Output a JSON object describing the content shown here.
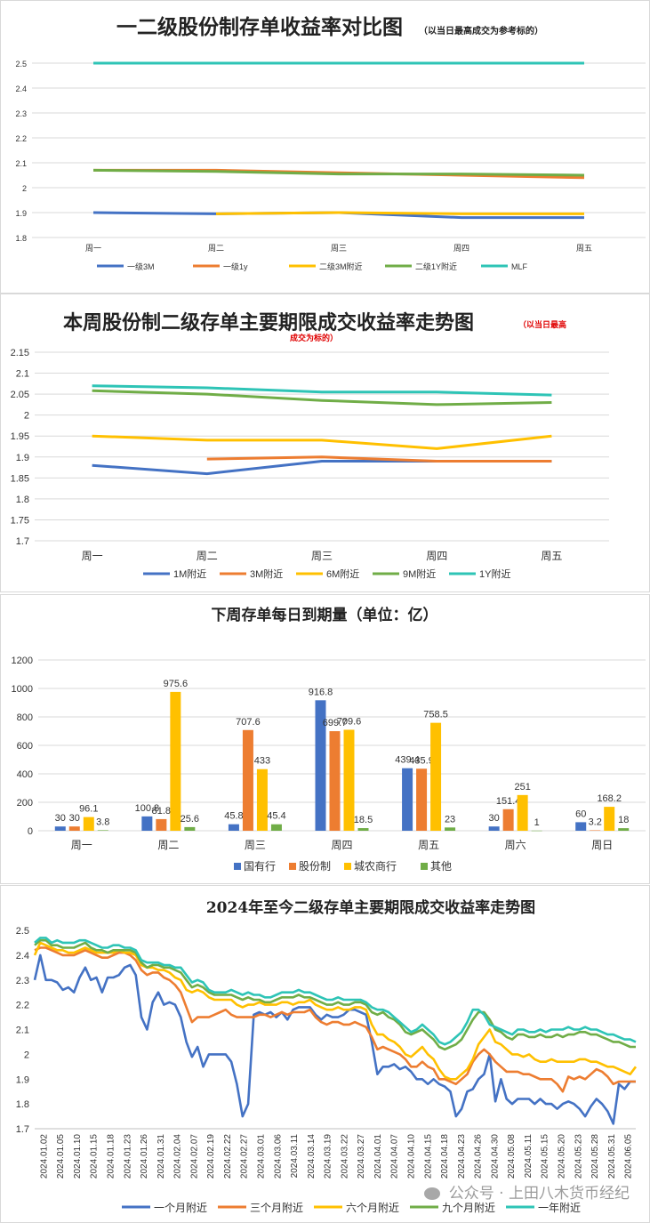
{
  "chart_data": [
    {
      "type": "line",
      "title": "一二级股份制存单收益率对比图",
      "subtitle": "（以当日最高成交为参考标的）",
      "categories": [
        "周一",
        "周二",
        "周三",
        "周四",
        "周五"
      ],
      "ylim": [
        1.8,
        2.5
      ],
      "yticks": [
        "1.8",
        "1.9",
        "2",
        "2.1",
        "2.2",
        "2.3",
        "2.4",
        "2.5"
      ],
      "grid": true,
      "legend": "bottom",
      "series": [
        {
          "name": "一级3M",
          "color": "#4472C4",
          "values": [
            1.9,
            1.895,
            1.9,
            1.88,
            1.88
          ]
        },
        {
          "name": "一级1y",
          "color": "#ED7D31",
          "values": [
            2.07,
            2.07,
            2.06,
            2.05,
            2.04
          ]
        },
        {
          "name": "二级3M附近",
          "color": "#FFC000",
          "values": [
            null,
            1.895,
            1.9,
            1.895,
            1.895
          ]
        },
        {
          "name": "二级1Y附近",
          "color": "#70AD47",
          "values": [
            2.07,
            2.065,
            2.055,
            2.055,
            2.05
          ]
        },
        {
          "name": "MLF",
          "color": "#2EC4B6",
          "values": [
            2.5,
            2.5,
            2.5,
            2.5,
            2.5
          ]
        }
      ]
    },
    {
      "type": "line",
      "title": "本周股份制二级存单主要期限成交收益率走势图",
      "subtitle_line1": "（以当日最高",
      "subtitle_line2": "成交为标的）",
      "categories": [
        "周一",
        "周二",
        "周三",
        "周四",
        "周五"
      ],
      "ylim": [
        1.7,
        2.15
      ],
      "yticks": [
        "1.7",
        "1.75",
        "1.8",
        "1.85",
        "1.9",
        "1.95",
        "2",
        "2.05",
        "2.1",
        "2.15"
      ],
      "grid": true,
      "legend": "bottom",
      "series": [
        {
          "name": "1M附近",
          "color": "#4472C4",
          "values": [
            1.88,
            1.86,
            1.89,
            1.89,
            1.89
          ]
        },
        {
          "name": "3M附近",
          "color": "#ED7D31",
          "values": [
            null,
            1.895,
            1.9,
            1.89,
            1.89
          ]
        },
        {
          "name": "6M附近",
          "color": "#FFC000",
          "values": [
            1.95,
            1.94,
            1.94,
            1.92,
            1.95
          ]
        },
        {
          "name": "9M附近",
          "color": "#70AD47",
          "values": [
            2.058,
            2.05,
            2.035,
            2.025,
            2.03
          ]
        },
        {
          "name": "1Y附近",
          "color": "#2EC4B6",
          "values": [
            2.07,
            2.065,
            2.055,
            2.055,
            2.048
          ]
        }
      ]
    },
    {
      "type": "bar",
      "title": "下周存单每日到期量（单位：亿）",
      "categories": [
        "周一",
        "周二",
        "周三",
        "周四",
        "周五",
        "周六",
        "周日"
      ],
      "ylim": [
        0,
        1200
      ],
      "yticks": [
        "0",
        "200",
        "400",
        "600",
        "800",
        "1000",
        "1200"
      ],
      "grid": true,
      "legend": "bottom",
      "series": [
        {
          "name": "国有行",
          "color": "#4472C4",
          "values": [
            30,
            100.8,
            45.8,
            916.8,
            439.4,
            30,
            60
          ],
          "labels": [
            "30",
            "100.8",
            "45.8",
            "916.8",
            "439.4",
            "30",
            "60"
          ]
        },
        {
          "name": "股份制",
          "color": "#ED7D31",
          "values": [
            30,
            81.8,
            707.6,
            699.7,
            435.9,
            151.4,
            3.2
          ],
          "labels": [
            "30",
            "81.8",
            "707.6",
            "699.7",
            "435.9",
            "151.4",
            "3.2"
          ]
        },
        {
          "name": "城农商行",
          "color": "#FFC000",
          "values": [
            96.1,
            975.6,
            433,
            709.6,
            758.5,
            251,
            168.2
          ],
          "labels": [
            "96.1",
            "975.6",
            "433",
            "709.6",
            "758.5",
            "251",
            "168.2"
          ]
        },
        {
          "name": "其他",
          "color": "#70AD47",
          "values": [
            3.8,
            25.6,
            45.4,
            18.5,
            23,
            1,
            18
          ],
          "labels": [
            "3.8",
            "25.6",
            "45.4",
            "18.5",
            "23",
            "1",
            "18"
          ]
        }
      ]
    },
    {
      "type": "line",
      "title": "2024年至今二级存单主要期限成交收益率走势图",
      "ylim": [
        1.7,
        2.5
      ],
      "yticks": [
        "1.7",
        "1.8",
        "1.9",
        "2",
        "2.1",
        "2.2",
        "2.3",
        "2.4",
        "2.5"
      ],
      "grid": false,
      "legend": "bottom",
      "x_tick_labels": [
        "2024.01.02",
        "2024.01.05",
        "2024.01.10",
        "2024.01.15",
        "2024.01.18",
        "2024.01.23",
        "2024.01.26",
        "2024.01.31",
        "2024.02.04",
        "2024.02.07",
        "2024.02.19",
        "2024.02.22",
        "2024.02.27",
        "2024.03.01",
        "2024.03.06",
        "2024.03.11",
        "2024.03.14",
        "2024.03.19",
        "2024.03.22",
        "2024.03.27",
        "2024.04.01",
        "2024.04.07",
        "2024.04.10",
        "2024.04.15",
        "2024.04.18",
        "2024.04.23",
        "2024.04.26",
        "2024.04.30",
        "2024.05.08",
        "2024.05.11",
        "2024.05.15",
        "2024.05.20",
        "2024.05.23",
        "2024.05.28",
        "2024.05.31",
        "2024.06.05"
      ],
      "series": [
        {
          "name": "一个月附近",
          "color": "#4472C4",
          "values": [
            2.3,
            2.4,
            2.3,
            2.3,
            2.29,
            2.26,
            2.27,
            2.25,
            2.31,
            2.35,
            2.3,
            2.31,
            2.25,
            2.31,
            2.31,
            2.32,
            2.35,
            2.36,
            2.32,
            2.15,
            2.1,
            2.21,
            2.25,
            2.2,
            2.21,
            2.2,
            2.15,
            2.05,
            1.99,
            2.03,
            1.95,
            2.0,
            2.0,
            2.0,
            2.0,
            1.97,
            1.88,
            1.75,
            1.8,
            2.16,
            2.17,
            2.16,
            2.17,
            2.15,
            2.17,
            2.14,
            2.18,
            2.19,
            2.19,
            2.19,
            2.16,
            2.14,
            2.16,
            2.15,
            2.15,
            2.16,
            2.18,
            2.18,
            2.17,
            2.16,
            2.05,
            1.92,
            1.95,
            1.95,
            1.96,
            1.94,
            1.95,
            1.93,
            1.9,
            1.9,
            1.88,
            1.9,
            1.88,
            1.87,
            1.85,
            1.75,
            1.78,
            1.85,
            1.86,
            1.9,
            1.92,
            2.0,
            1.81,
            1.9,
            1.82,
            1.8,
            1.82,
            1.82,
            1.82,
            1.8,
            1.82,
            1.8,
            1.8,
            1.78,
            1.8,
            1.81,
            1.8,
            1.78,
            1.75,
            1.79,
            1.82,
            1.8,
            1.77,
            1.72,
            1.88,
            1.86,
            1.89,
            1.89
          ]
        },
        {
          "name": "三个月附近",
          "color": "#ED7D31",
          "values": [
            2.42,
            2.43,
            2.43,
            2.42,
            2.41,
            2.4,
            2.4,
            2.4,
            2.41,
            2.42,
            2.41,
            2.4,
            2.39,
            2.39,
            2.4,
            2.41,
            2.41,
            2.4,
            2.38,
            2.34,
            2.32,
            2.33,
            2.33,
            2.31,
            2.3,
            2.28,
            2.25,
            2.19,
            2.13,
            2.15,
            2.15,
            2.15,
            2.16,
            2.17,
            2.18,
            2.16,
            2.15,
            2.15,
            2.15,
            2.15,
            2.16,
            2.16,
            2.15,
            2.16,
            2.17,
            2.16,
            2.17,
            2.17,
            2.17,
            2.18,
            2.15,
            2.13,
            2.12,
            2.13,
            2.13,
            2.12,
            2.12,
            2.13,
            2.12,
            2.11,
            2.07,
            2.02,
            2.03,
            2.02,
            2.01,
            2.0,
            1.98,
            1.95,
            1.95,
            1.97,
            1.95,
            1.94,
            1.9,
            1.9,
            1.89,
            1.88,
            1.9,
            1.92,
            1.97,
            2.0,
            2.02,
            2.0,
            1.97,
            1.95,
            1.93,
            1.93,
            1.93,
            1.92,
            1.92,
            1.91,
            1.9,
            1.9,
            1.9,
            1.88,
            1.85,
            1.91,
            1.9,
            1.91,
            1.9,
            1.92,
            1.94,
            1.93,
            1.91,
            1.88,
            1.89,
            1.89,
            1.89,
            1.89
          ]
        },
        {
          "name": "六个月附近",
          "color": "#FFC000",
          "values": [
            2.4,
            2.45,
            2.44,
            2.43,
            2.42,
            2.42,
            2.41,
            2.41,
            2.42,
            2.43,
            2.42,
            2.41,
            2.41,
            2.41,
            2.41,
            2.42,
            2.41,
            2.41,
            2.4,
            2.36,
            2.35,
            2.35,
            2.34,
            2.34,
            2.33,
            2.31,
            2.3,
            2.26,
            2.25,
            2.26,
            2.25,
            2.23,
            2.22,
            2.22,
            2.22,
            2.22,
            2.2,
            2.19,
            2.2,
            2.2,
            2.21,
            2.2,
            2.2,
            2.2,
            2.21,
            2.21,
            2.2,
            2.21,
            2.21,
            2.22,
            2.2,
            2.19,
            2.18,
            2.18,
            2.19,
            2.18,
            2.18,
            2.19,
            2.19,
            2.18,
            2.12,
            2.08,
            2.08,
            2.06,
            2.05,
            2.03,
            2.0,
            1.99,
            2.01,
            2.03,
            2.0,
            1.98,
            1.94,
            1.91,
            1.9,
            1.9,
            1.92,
            1.94,
            1.98,
            2.04,
            2.07,
            2.1,
            2.05,
            2.04,
            2.02,
            2.0,
            2.0,
            1.99,
            2.0,
            1.98,
            1.97,
            1.97,
            1.98,
            1.97,
            1.97,
            1.97,
            1.97,
            1.98,
            1.98,
            1.97,
            1.97,
            1.96,
            1.95,
            1.95,
            1.94,
            1.93,
            1.92,
            1.95
          ]
        },
        {
          "name": "九个月附近",
          "color": "#70AD47",
          "values": [
            2.44,
            2.46,
            2.46,
            2.44,
            2.44,
            2.43,
            2.43,
            2.43,
            2.44,
            2.45,
            2.43,
            2.42,
            2.42,
            2.41,
            2.42,
            2.42,
            2.42,
            2.42,
            2.41,
            2.37,
            2.35,
            2.36,
            2.36,
            2.35,
            2.35,
            2.34,
            2.33,
            2.3,
            2.27,
            2.28,
            2.27,
            2.25,
            2.24,
            2.24,
            2.24,
            2.24,
            2.23,
            2.22,
            2.23,
            2.22,
            2.22,
            2.21,
            2.21,
            2.22,
            2.23,
            2.23,
            2.23,
            2.24,
            2.23,
            2.23,
            2.22,
            2.21,
            2.2,
            2.2,
            2.21,
            2.2,
            2.2,
            2.21,
            2.21,
            2.2,
            2.17,
            2.16,
            2.17,
            2.15,
            2.14,
            2.12,
            2.09,
            2.08,
            2.09,
            2.1,
            2.08,
            2.06,
            2.03,
            2.02,
            2.03,
            2.04,
            2.06,
            2.1,
            2.14,
            2.17,
            2.17,
            2.14,
            2.1,
            2.09,
            2.07,
            2.06,
            2.08,
            2.08,
            2.07,
            2.07,
            2.08,
            2.07,
            2.07,
            2.08,
            2.07,
            2.08,
            2.08,
            2.09,
            2.09,
            2.08,
            2.08,
            2.07,
            2.06,
            2.05,
            2.05,
            2.04,
            2.03,
            2.03
          ]
        },
        {
          "name": "一年附近",
          "color": "#2EC4B6",
          "values": [
            2.45,
            2.47,
            2.47,
            2.45,
            2.46,
            2.45,
            2.45,
            2.45,
            2.46,
            2.46,
            2.45,
            2.44,
            2.43,
            2.43,
            2.44,
            2.44,
            2.43,
            2.43,
            2.42,
            2.38,
            2.37,
            2.37,
            2.37,
            2.36,
            2.36,
            2.35,
            2.35,
            2.32,
            2.29,
            2.3,
            2.29,
            2.26,
            2.25,
            2.25,
            2.25,
            2.26,
            2.25,
            2.24,
            2.25,
            2.24,
            2.24,
            2.23,
            2.23,
            2.24,
            2.25,
            2.25,
            2.25,
            2.26,
            2.25,
            2.25,
            2.24,
            2.23,
            2.22,
            2.22,
            2.23,
            2.22,
            2.22,
            2.22,
            2.22,
            2.21,
            2.19,
            2.18,
            2.18,
            2.17,
            2.15,
            2.13,
            2.11,
            2.09,
            2.1,
            2.12,
            2.1,
            2.08,
            2.05,
            2.04,
            2.05,
            2.07,
            2.09,
            2.13,
            2.18,
            2.18,
            2.16,
            2.12,
            2.11,
            2.1,
            2.09,
            2.08,
            2.1,
            2.1,
            2.09,
            2.09,
            2.1,
            2.09,
            2.1,
            2.1,
            2.1,
            2.11,
            2.1,
            2.1,
            2.11,
            2.1,
            2.1,
            2.09,
            2.08,
            2.08,
            2.07,
            2.06,
            2.06,
            2.05
          ]
        }
      ]
    }
  ],
  "watermark": "公众号 · 上田八木货币经纪",
  "watermark_icon": "wechat-icon"
}
